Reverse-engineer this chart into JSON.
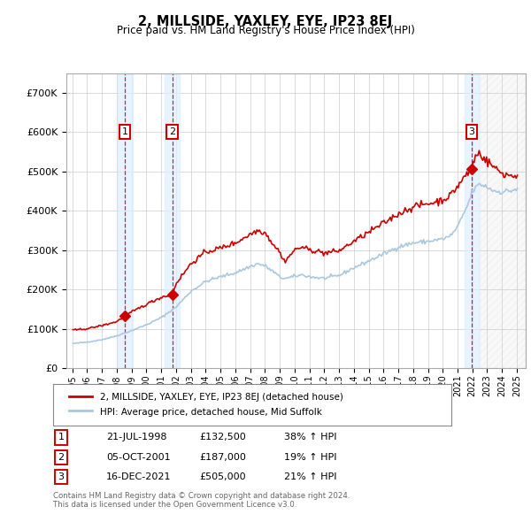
{
  "title": "2, MILLSIDE, YAXLEY, EYE, IP23 8EJ",
  "subtitle": "Price paid vs. HM Land Registry's House Price Index (HPI)",
  "ylim": [
    0,
    750000
  ],
  "yticks": [
    0,
    100000,
    200000,
    300000,
    400000,
    500000,
    600000,
    700000
  ],
  "ytick_labels": [
    "£0",
    "£100K",
    "£200K",
    "£300K",
    "£400K",
    "£500K",
    "£600K",
    "£700K"
  ],
  "bg_color": "#ffffff",
  "grid_color": "#cccccc",
  "sale_year_nums": [
    1998.55,
    2001.75,
    2021.96
  ],
  "sale_prices": [
    132500,
    187000,
    505000
  ],
  "sale_labels": [
    "1",
    "2",
    "3"
  ],
  "sale_pct": [
    "38%",
    "19%",
    "21%"
  ],
  "sale_date_labels": [
    "21-JUL-1998",
    "05-OCT-2001",
    "16-DEC-2021"
  ],
  "sale_price_labels": [
    "£132,500",
    "£187,000",
    "£505,000"
  ],
  "hpi_line_color": "#aac8e0",
  "price_line_color": "#cc0000",
  "sale_marker_color": "#cc0000",
  "sale_box_color": "#cc0000",
  "vband_color": "#ddeeff",
  "vline_color": "#cc0000",
  "legend_line1": "2, MILLSIDE, YAXLEY, EYE, IP23 8EJ (detached house)",
  "legend_line2": "HPI: Average price, detached house, Mid Suffolk",
  "footer1": "Contains HM Land Registry data © Crown copyright and database right 2024.",
  "footer2": "This data is licensed under the Open Government Licence v3.0."
}
